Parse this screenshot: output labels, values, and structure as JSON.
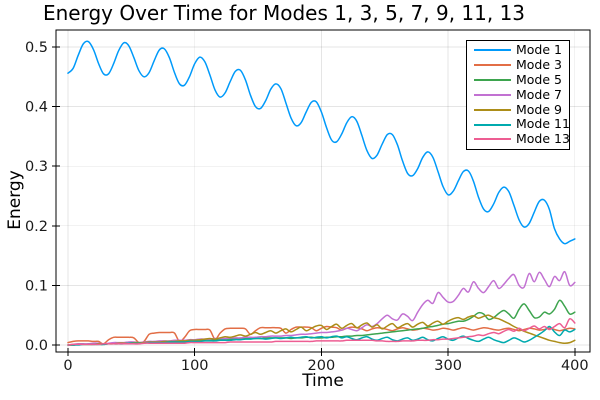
{
  "figure": {
    "background": "#ffffff",
    "frame_color": "#000000",
    "grid_color": "rgba(0,0,0,0.10)"
  },
  "chart_data": {
    "type": "line",
    "title": "Energy Over Time for Modes 1, 3, 5, 7, 9, 11, 13",
    "xlabel": "Time",
    "ylabel": "Energy",
    "xlim": [
      -9.5,
      412
    ],
    "ylim": [
      -0.0117,
      0.5285
    ],
    "grid": true,
    "legend_position": "top-right",
    "xticks": {
      "values": [
        0,
        100,
        200,
        300,
        400
      ],
      "labels": [
        "0",
        "100",
        "200",
        "300",
        "400"
      ]
    },
    "yticks": {
      "values": [
        0,
        0.1,
        0.2,
        0.3,
        0.4,
        0.5
      ],
      "labels": [
        "0.0",
        "0.1",
        "0.2",
        "0.3",
        "0.4",
        "0.5"
      ]
    },
    "x": [
      0,
      4,
      8,
      12,
      16,
      20,
      24,
      28,
      32,
      36,
      40,
      44,
      48,
      52,
      56,
      60,
      64,
      68,
      72,
      76,
      80,
      84,
      88,
      92,
      96,
      100,
      104,
      108,
      112,
      116,
      120,
      124,
      128,
      132,
      136,
      140,
      144,
      148,
      152,
      156,
      160,
      164,
      168,
      172,
      176,
      180,
      184,
      188,
      192,
      196,
      200,
      204,
      208,
      212,
      216,
      220,
      224,
      228,
      232,
      236,
      240,
      244,
      248,
      252,
      256,
      260,
      264,
      268,
      272,
      276,
      280,
      284,
      288,
      292,
      296,
      300,
      304,
      308,
      312,
      316,
      320,
      324,
      328,
      332,
      336,
      340,
      344,
      348,
      352,
      356,
      360,
      364,
      368,
      372,
      376,
      380,
      384,
      388,
      392,
      396,
      400
    ],
    "series": [
      {
        "name": "Mode 1",
        "color": "#009AFA",
        "values": [
          0.456,
          0.464,
          0.486,
          0.505,
          0.509,
          0.496,
          0.473,
          0.455,
          0.455,
          0.472,
          0.494,
          0.507,
          0.502,
          0.482,
          0.46,
          0.45,
          0.457,
          0.477,
          0.495,
          0.497,
          0.482,
          0.457,
          0.438,
          0.436,
          0.451,
          0.472,
          0.483,
          0.475,
          0.453,
          0.428,
          0.416,
          0.423,
          0.442,
          0.459,
          0.461,
          0.445,
          0.419,
          0.4,
          0.397,
          0.41,
          0.429,
          0.438,
          0.43,
          0.406,
          0.381,
          0.368,
          0.373,
          0.391,
          0.407,
          0.408,
          0.391,
          0.365,
          0.344,
          0.341,
          0.354,
          0.373,
          0.383,
          0.375,
          0.351,
          0.326,
          0.313,
          0.319,
          0.337,
          0.353,
          0.353,
          0.336,
          0.309,
          0.288,
          0.284,
          0.296,
          0.315,
          0.324,
          0.315,
          0.291,
          0.266,
          0.252,
          0.258,
          0.275,
          0.291,
          0.292,
          0.275,
          0.248,
          0.228,
          0.224,
          0.237,
          0.256,
          0.265,
          0.257,
          0.234,
          0.21,
          0.198,
          0.204,
          0.223,
          0.241,
          0.243,
          0.227,
          0.195,
          0.178,
          0.17,
          0.174,
          0.178
        ]
      },
      {
        "name": "Mode 3",
        "color": "#E26E46",
        "values": [
          0.004,
          0.006,
          0.007,
          0.007,
          0.007,
          0.006,
          0.006,
          0.002,
          0.009,
          0.013,
          0.013,
          0.013,
          0.013,
          0.012,
          0.004,
          0.006,
          0.018,
          0.02,
          0.021,
          0.021,
          0.021,
          0.02,
          0.006,
          0.013,
          0.024,
          0.026,
          0.026,
          0.026,
          0.025,
          0.01,
          0.02,
          0.027,
          0.028,
          0.028,
          0.028,
          0.027,
          0.018,
          0.024,
          0.029,
          0.029,
          0.029,
          0.029,
          0.028,
          0.02,
          0.026,
          0.03,
          0.03,
          0.03,
          0.029,
          0.024,
          0.028,
          0.031,
          0.03,
          0.029,
          0.025,
          0.028,
          0.03,
          0.029,
          0.027,
          0.024,
          0.027,
          0.029,
          0.028,
          0.026,
          0.024,
          0.027,
          0.029,
          0.027,
          0.025,
          0.026,
          0.028,
          0.027,
          0.025,
          0.026,
          0.028,
          0.027,
          0.025,
          0.027,
          0.029,
          0.027,
          0.025,
          0.027,
          0.029,
          0.028,
          0.026,
          0.025,
          0.027,
          0.028,
          0.026,
          0.024,
          0.026,
          0.028,
          0.027,
          0.025,
          0.026,
          0.028,
          0.026,
          0.024,
          0.026,
          0.028,
          0.027
        ]
      },
      {
        "name": "Mode 5",
        "color": "#3DA44E",
        "values": [
          0.0,
          0.0,
          0.001,
          0.001,
          0.001,
          0.001,
          0.001,
          0.001,
          0.002,
          0.002,
          0.002,
          0.003,
          0.003,
          0.003,
          0.003,
          0.004,
          0.004,
          0.005,
          0.005,
          0.006,
          0.006,
          0.006,
          0.006,
          0.007,
          0.007,
          0.008,
          0.008,
          0.009,
          0.009,
          0.009,
          0.009,
          0.01,
          0.01,
          0.011,
          0.011,
          0.011,
          0.011,
          0.011,
          0.011,
          0.012,
          0.012,
          0.012,
          0.012,
          0.012,
          0.011,
          0.012,
          0.012,
          0.013,
          0.013,
          0.012,
          0.012,
          0.013,
          0.013,
          0.014,
          0.014,
          0.015,
          0.015,
          0.016,
          0.016,
          0.017,
          0.018,
          0.019,
          0.02,
          0.021,
          0.022,
          0.023,
          0.024,
          0.025,
          0.026,
          0.027,
          0.028,
          0.03,
          0.031,
          0.033,
          0.035,
          0.036,
          0.038,
          0.04,
          0.04,
          0.043,
          0.048,
          0.054,
          0.052,
          0.043,
          0.046,
          0.053,
          0.058,
          0.052,
          0.045,
          0.06,
          0.069,
          0.058,
          0.046,
          0.047,
          0.055,
          0.052,
          0.06,
          0.075,
          0.065,
          0.052,
          0.055
        ]
      },
      {
        "name": "Mode 7",
        "color": "#C271D2",
        "values": [
          0.0,
          0.001,
          0.002,
          0.002,
          0.002,
          0.003,
          0.003,
          0.002,
          0.003,
          0.004,
          0.004,
          0.004,
          0.005,
          0.005,
          0.004,
          0.005,
          0.006,
          0.006,
          0.007,
          0.007,
          0.007,
          0.008,
          0.008,
          0.008,
          0.009,
          0.009,
          0.01,
          0.01,
          0.01,
          0.011,
          0.011,
          0.011,
          0.012,
          0.012,
          0.012,
          0.013,
          0.013,
          0.013,
          0.014,
          0.014,
          0.015,
          0.015,
          0.015,
          0.016,
          0.016,
          0.017,
          0.018,
          0.018,
          0.019,
          0.02,
          0.021,
          0.021,
          0.022,
          0.023,
          0.025,
          0.028,
          0.026,
          0.024,
          0.029,
          0.034,
          0.031,
          0.036,
          0.044,
          0.05,
          0.044,
          0.042,
          0.052,
          0.048,
          0.041,
          0.055,
          0.068,
          0.075,
          0.07,
          0.088,
          0.08,
          0.072,
          0.073,
          0.083,
          0.095,
          0.089,
          0.106,
          0.095,
          0.088,
          0.098,
          0.108,
          0.095,
          0.102,
          0.112,
          0.118,
          0.1,
          0.097,
          0.12,
          0.106,
          0.122,
          0.11,
          0.098,
          0.115,
          0.108,
          0.123,
          0.1,
          0.105
        ]
      },
      {
        "name": "Mode 9",
        "color": "#AC8D18",
        "values": [
          0.0,
          0.0,
          0.001,
          0.001,
          0.001,
          0.001,
          0.002,
          0.002,
          0.002,
          0.002,
          0.003,
          0.003,
          0.003,
          0.004,
          0.004,
          0.004,
          0.005,
          0.005,
          0.005,
          0.006,
          0.006,
          0.006,
          0.007,
          0.007,
          0.008,
          0.008,
          0.009,
          0.01,
          0.011,
          0.01,
          0.012,
          0.014,
          0.013,
          0.015,
          0.017,
          0.015,
          0.018,
          0.021,
          0.018,
          0.021,
          0.024,
          0.02,
          0.024,
          0.027,
          0.022,
          0.026,
          0.03,
          0.024,
          0.028,
          0.032,
          0.033,
          0.026,
          0.031,
          0.035,
          0.028,
          0.033,
          0.036,
          0.029,
          0.034,
          0.037,
          0.03,
          0.034,
          0.027,
          0.032,
          0.036,
          0.029,
          0.033,
          0.036,
          0.03,
          0.035,
          0.038,
          0.032,
          0.037,
          0.04,
          0.035,
          0.04,
          0.044,
          0.046,
          0.043,
          0.047,
          0.049,
          0.045,
          0.048,
          0.05,
          0.046,
          0.044,
          0.04,
          0.036,
          0.031,
          0.027,
          0.023,
          0.02,
          0.017,
          0.014,
          0.011,
          0.008,
          0.006,
          0.004,
          0.003,
          0.004,
          0.008
        ]
      },
      {
        "name": "Mode 11",
        "color": "#00AAAE",
        "values": [
          0.0,
          0.0,
          0.0,
          0.001,
          0.001,
          0.001,
          0.001,
          0.001,
          0.002,
          0.002,
          0.002,
          0.002,
          0.003,
          0.003,
          0.003,
          0.003,
          0.004,
          0.004,
          0.004,
          0.004,
          0.005,
          0.005,
          0.005,
          0.005,
          0.006,
          0.006,
          0.006,
          0.007,
          0.007,
          0.007,
          0.008,
          0.008,
          0.008,
          0.009,
          0.009,
          0.01,
          0.01,
          0.011,
          0.011,
          0.01,
          0.011,
          0.012,
          0.011,
          0.012,
          0.013,
          0.012,
          0.013,
          0.014,
          0.012,
          0.013,
          0.014,
          0.012,
          0.014,
          0.015,
          0.012,
          0.014,
          0.011,
          0.009,
          0.012,
          0.014,
          0.01,
          0.008,
          0.011,
          0.013,
          0.009,
          0.007,
          0.01,
          0.012,
          0.008,
          0.01,
          0.013,
          0.009,
          0.007,
          0.011,
          0.014,
          0.01,
          0.008,
          0.012,
          0.015,
          0.011,
          0.008,
          0.006,
          0.01,
          0.013,
          0.009,
          0.006,
          0.004,
          0.008,
          0.012,
          0.009,
          0.005,
          0.008,
          0.013,
          0.018,
          0.024,
          0.031,
          0.022,
          0.016,
          0.025,
          0.022,
          0.026
        ]
      },
      {
        "name": "Mode 13",
        "color": "#ED5D92",
        "values": [
          0.0,
          0.001,
          0.001,
          0.001,
          0.001,
          0.001,
          0.001,
          0.002,
          0.002,
          0.002,
          0.002,
          0.002,
          0.002,
          0.002,
          0.002,
          0.003,
          0.003,
          0.003,
          0.003,
          0.003,
          0.003,
          0.003,
          0.003,
          0.003,
          0.004,
          0.004,
          0.004,
          0.004,
          0.004,
          0.004,
          0.004,
          0.004,
          0.005,
          0.005,
          0.005,
          0.005,
          0.005,
          0.005,
          0.005,
          0.005,
          0.005,
          0.006,
          0.006,
          0.006,
          0.006,
          0.006,
          0.006,
          0.006,
          0.006,
          0.007,
          0.007,
          0.007,
          0.007,
          0.007,
          0.007,
          0.008,
          0.008,
          0.008,
          0.008,
          0.008,
          0.008,
          0.007,
          0.007,
          0.006,
          0.006,
          0.006,
          0.007,
          0.007,
          0.007,
          0.008,
          0.008,
          0.008,
          0.009,
          0.009,
          0.01,
          0.01,
          0.011,
          0.012,
          0.013,
          0.014,
          0.015,
          0.017,
          0.016,
          0.019,
          0.021,
          0.019,
          0.023,
          0.026,
          0.023,
          0.028,
          0.024,
          0.028,
          0.032,
          0.027,
          0.031,
          0.026,
          0.031,
          0.036,
          0.029,
          0.044,
          0.037
        ]
      }
    ]
  }
}
